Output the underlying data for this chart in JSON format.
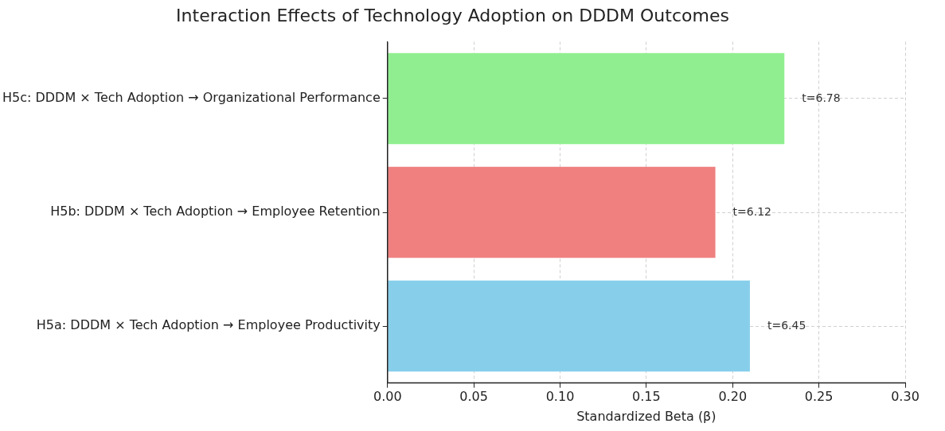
{
  "chart_data": {
    "type": "bar",
    "orientation": "horizontal",
    "title": "Interaction Effects of Technology Adoption on DDDM Outcomes",
    "xlabel": "Standardized Beta (β)",
    "categories": [
      "H5c: DDDM × Tech Adoption → Organizational Performance",
      "H5b: DDDM × Tech Adoption → Employee Retention",
      "H5a: DDDM × Tech Adoption → Employee Productivity"
    ],
    "values": [
      0.23,
      0.19,
      0.21
    ],
    "colors": [
      "#90ee90",
      "#f08080",
      "#87ceeb"
    ],
    "xlim": [
      0,
      0.3
    ],
    "xticks": [
      {
        "value": 0,
        "label": "0.00"
      },
      {
        "value": 0.05,
        "label": "0.05"
      },
      {
        "value": 0.1,
        "label": "0.10"
      },
      {
        "value": 0.15,
        "label": "0.15"
      },
      {
        "value": 0.2,
        "label": "0.20"
      },
      {
        "value": 0.25,
        "label": "0.25"
      },
      {
        "value": 0.3,
        "label": "0.30"
      }
    ],
    "grid": true,
    "annotations": [
      {
        "text": "t=6.78",
        "x": 0.23,
        "y": "H5c: DDDM × Tech Adoption → Organizational Performance"
      },
      {
        "text": "t=6.12",
        "x": 0.19,
        "y": "H5b: DDDM × Tech Adoption → Employee Retention"
      },
      {
        "text": "t=6.45",
        "x": 0.21,
        "y": "H5a: DDDM × Tech Adoption → Employee Productivity"
      }
    ]
  }
}
